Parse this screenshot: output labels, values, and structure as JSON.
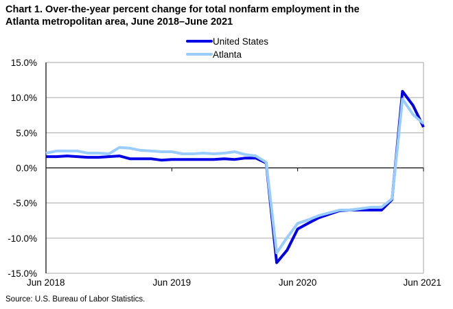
{
  "chart_data": {
    "type": "line",
    "title": "Chart 1. Over-the-year percent change for total nonfarm employment in the Atlanta metropolitan area, June 2018–June 2021",
    "title_lines": [
      "Chart 1. Over-the-year percent change for total nonfarm employment  in the",
      "Atlanta metropolitan  area, June 2018–June  2021"
    ],
    "xlabel": "",
    "ylabel": "",
    "source": "Source:  U.S. Bureau  of Labor  Statistics.",
    "ylim": [
      -15,
      15
    ],
    "yticks": [
      15,
      10,
      5,
      0,
      -5,
      -10,
      -15
    ],
    "ytick_labels": [
      "15.0%",
      "10.0%",
      "5.0%",
      "0.0%",
      "-5.0%",
      "-10.0%",
      "-15.0%"
    ],
    "grid": "horizontal",
    "legend_position": "top-center",
    "x": [
      "Jun 2018",
      "Jul 2018",
      "Aug 2018",
      "Sep 2018",
      "Oct 2018",
      "Nov 2018",
      "Dec 2018",
      "Jan 2019",
      "Feb 2019",
      "Mar 2019",
      "Apr 2019",
      "May 2019",
      "Jun 2019",
      "Jul 2019",
      "Aug 2019",
      "Sep 2019",
      "Oct 2019",
      "Nov 2019",
      "Dec 2019",
      "Jan 2020",
      "Feb 2020",
      "Mar 2020",
      "Apr 2020",
      "May 2020",
      "Jun 2020",
      "Jul 2020",
      "Aug 2020",
      "Sep 2020",
      "Oct 2020",
      "Nov 2020",
      "Dec 2020",
      "Jan 2021",
      "Feb 2021",
      "Mar 2021",
      "Apr 2021",
      "May 2021",
      "Jun 2021"
    ],
    "xtick_labels": [
      {
        "label": "Jun 2018",
        "index": 0
      },
      {
        "label": "Jun 2019",
        "index": 12
      },
      {
        "label": "Jun 2020",
        "index": 24
      },
      {
        "label": "Jun 2021",
        "index": 36
      }
    ],
    "series": [
      {
        "name": "United States",
        "color": "#0000e6",
        "values": [
          1.6,
          1.6,
          1.7,
          1.6,
          1.5,
          1.5,
          1.6,
          1.7,
          1.3,
          1.3,
          1.3,
          1.1,
          1.2,
          1.2,
          1.2,
          1.2,
          1.2,
          1.3,
          1.2,
          1.4,
          1.4,
          0.7,
          -13.5,
          -11.7,
          -8.7,
          -7.9,
          -7.1,
          -6.6,
          -6.1,
          -6.0,
          -6.0,
          -6.0,
          -6.0,
          -4.5,
          10.9,
          8.9,
          5.8
        ]
      },
      {
        "name": "Atlanta",
        "color": "#99ccff",
        "values": [
          2.1,
          2.4,
          2.4,
          2.4,
          2.1,
          2.1,
          2.0,
          2.9,
          2.8,
          2.5,
          2.4,
          2.3,
          2.3,
          2.0,
          2.0,
          2.1,
          2.0,
          2.1,
          2.3,
          1.9,
          1.7,
          0.8,
          -12.1,
          -9.9,
          -7.9,
          -7.4,
          -6.8,
          -6.4,
          -6.0,
          -6.0,
          -5.8,
          -5.6,
          -5.6,
          -4.4,
          9.8,
          7.6,
          6.3
        ]
      }
    ]
  }
}
